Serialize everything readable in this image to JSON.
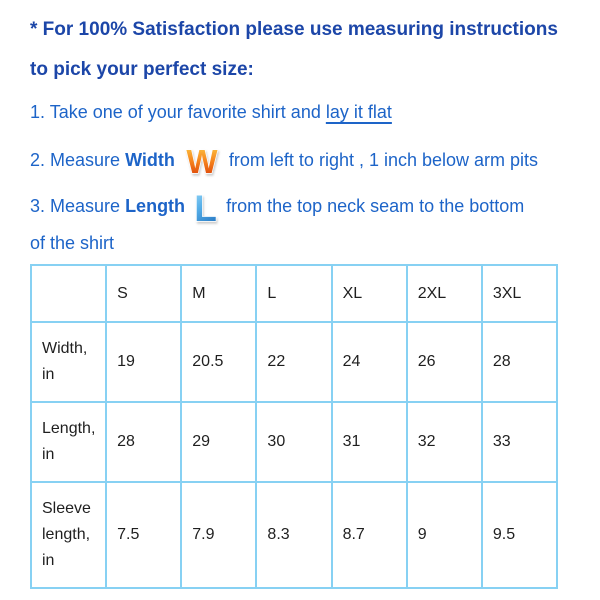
{
  "colors": {
    "heading_blue": "#1c46a8",
    "body_blue": "#1d64c8",
    "table_border_blue": "#87d1f3",
    "table_text": "#1f1f1f",
    "w_icon_gradient": [
      "#fdd14a",
      "#f5821c",
      "#d63504"
    ],
    "l_icon_gradient": [
      "#9bdaf8",
      "#55aee8",
      "#2d7fc8"
    ]
  },
  "heading": {
    "line1": "* For 100% Satisfaction please use measuring instructions",
    "line2": "to pick your perfect size:"
  },
  "steps": {
    "step1": {
      "prefix": "1. Take one of your favorite shirt and ",
      "underlined": "lay it flat"
    },
    "step2": {
      "prefix": "2. Measure",
      "keyword": "Width",
      "icon": "W",
      "icon_name": "letter-w-gradient-icon",
      "rest": "from left to right , 1 inch below arm pits"
    },
    "step3": {
      "prefix": "3. Measure",
      "keyword": "Length",
      "icon": "L",
      "icon_name": "letter-l-gradient-icon",
      "rest": "from the top neck seam to the bottom of the shirt"
    }
  },
  "size_chart": {
    "columns": [
      "",
      "S",
      "M",
      "L",
      "XL",
      "2XL",
      "3XL"
    ],
    "rows": [
      {
        "label": "Width, in",
        "values": [
          "19",
          "20.5",
          "22",
          "24",
          "26",
          "28"
        ]
      },
      {
        "label": "Length, in",
        "values": [
          "28",
          "29",
          "30",
          "31",
          "32",
          "33"
        ]
      },
      {
        "label": "Sleeve length, in",
        "values": [
          "7.5",
          "7.9",
          "8.3",
          "8.7",
          "9",
          "9.5"
        ]
      }
    ]
  }
}
